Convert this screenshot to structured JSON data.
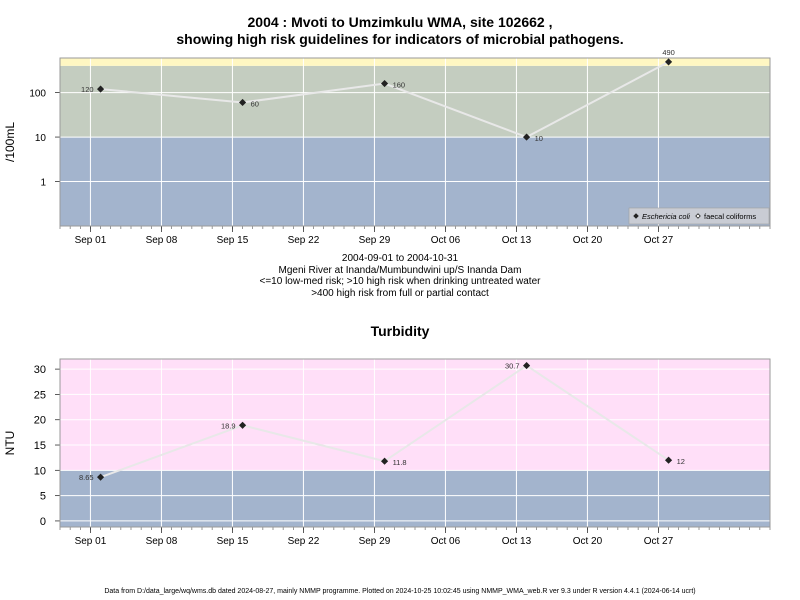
{
  "title": {
    "line1": "2004 : Mvoti to Umzimkulu WMA, site 102662 ,",
    "line2": "showing high risk guidelines for indicators of microbial pathogens."
  },
  "subtitle": {
    "line1": "2004-09-01 to 2004-10-31",
    "line2": "Mgeni River at Inanda/Mumbundwini up/S Inanda Dam",
    "line3": "<=10 low-med risk; >10 high risk when drinking untreated water",
    "line4": ">400 high risk from full or partial contact"
  },
  "turbidity_title": "Turbidity",
  "footer": "Data from D:/data_large/wq/wms.db dated 2024-08-27, mainly NMMP programme. Plotted on 2024-10-25 10:02:45 using NMMP_WMA_web.R ver 9.3 under R version 4.4.1 (2024-06-14 ucrt)",
  "colors": {
    "low_risk_band": "#a3b4cd",
    "high_risk_band": "#c4cdc0",
    "contact_risk_band": "#fff7c2",
    "turbidity_band_high": "#ffdff8",
    "turbidity_band_low": "#a3b4cd",
    "line": "#e8e8e8",
    "marker": "#222222",
    "grid": "#ffffff"
  },
  "chart_data": [
    {
      "type": "line",
      "scale": "log",
      "ylabel": "/100mL",
      "xlabel": "",
      "x_ticks": [
        "Sep 01",
        "Sep 08",
        "Sep 15",
        "Sep 22",
        "Sep 29",
        "Oct 06",
        "Oct 13",
        "Oct 20",
        "Oct 27"
      ],
      "x_tick_dates": [
        "2004-09-01",
        "2004-09-08",
        "2004-09-15",
        "2004-09-22",
        "2004-09-29",
        "2004-10-06",
        "2004-10-13",
        "2004-10-20",
        "2004-10-27"
      ],
      "xlim": [
        "2004-08-29",
        "2004-11-07"
      ],
      "y_ticks": [
        1,
        10,
        100
      ],
      "y_tick_labels": [
        "1",
        "10",
        "100"
      ],
      "ylim": [
        0.1,
        600
      ],
      "bands": [
        {
          "from": 0.1,
          "to": 10,
          "color_key": "low_risk_band"
        },
        {
          "from": 10,
          "to": 400,
          "color_key": "high_risk_band"
        },
        {
          "from": 400,
          "to": 600,
          "color_key": "contact_risk_band"
        }
      ],
      "series": [
        {
          "name": "Eschericia coli",
          "x": [
            "2004-09-02",
            "2004-09-16",
            "2004-09-30",
            "2004-10-14",
            "2004-10-28"
          ],
          "values": [
            120,
            60,
            160,
            10,
            490
          ],
          "labels": [
            "120",
            "60",
            "160",
            "10",
            "490"
          ]
        }
      ],
      "legend": {
        "position": "bottom-right",
        "entries": [
          {
            "label": "Eschericia coli",
            "marker": "filled-diamond",
            "italic": true
          },
          {
            "label": "faecal coliforms",
            "marker": "open-diamond",
            "italic": false
          }
        ]
      }
    },
    {
      "type": "line",
      "scale": "linear",
      "title": "Turbidity",
      "ylabel": "NTU",
      "xlabel": "",
      "x_ticks": [
        "Sep 01",
        "Sep 08",
        "Sep 15",
        "Sep 22",
        "Sep 29",
        "Oct 06",
        "Oct 13",
        "Oct 20",
        "Oct 27"
      ],
      "x_tick_dates": [
        "2004-09-01",
        "2004-09-08",
        "2004-09-15",
        "2004-09-22",
        "2004-09-29",
        "2004-10-06",
        "2004-10-13",
        "2004-10-20",
        "2004-10-27"
      ],
      "xlim": [
        "2004-08-29",
        "2004-11-07"
      ],
      "y_ticks": [
        0,
        5,
        10,
        15,
        20,
        25,
        30
      ],
      "y_tick_labels": [
        "0",
        "5",
        "10",
        "15",
        "20",
        "25",
        "30"
      ],
      "ylim": [
        -1.2,
        32
      ],
      "bands": [
        {
          "from": -1.2,
          "to": 10,
          "color_key": "turbidity_band_low"
        },
        {
          "from": 10,
          "to": 32,
          "color_key": "turbidity_band_high"
        }
      ],
      "series": [
        {
          "name": "",
          "x": [
            "2004-09-02",
            "2004-09-16",
            "2004-09-30",
            "2004-10-14",
            "2004-10-28"
          ],
          "values": [
            8.65,
            18.9,
            11.8,
            30.7,
            12
          ],
          "labels": [
            "8.65",
            "18.9",
            "11.8",
            "30.7",
            "12"
          ]
        }
      ]
    }
  ]
}
